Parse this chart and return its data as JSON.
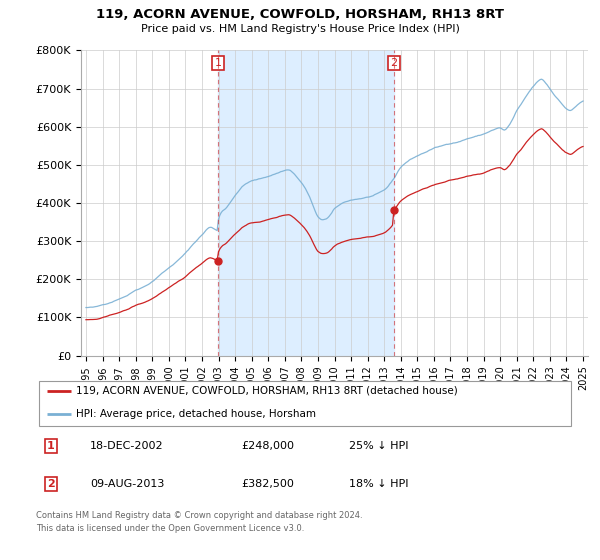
{
  "title": "119, ACORN AVENUE, COWFOLD, HORSHAM, RH13 8RT",
  "subtitle": "Price paid vs. HM Land Registry's House Price Index (HPI)",
  "legend_line1": "119, ACORN AVENUE, COWFOLD, HORSHAM, RH13 8RT (detached house)",
  "legend_line2": "HPI: Average price, detached house, Horsham",
  "footnote1": "Contains HM Land Registry data © Crown copyright and database right 2024.",
  "footnote2": "This data is licensed under the Open Government Licence v3.0.",
  "sale1_date": "18-DEC-2002",
  "sale1_price_str": "£248,000",
  "sale1_label": "25% ↓ HPI",
  "sale2_date": "09-AUG-2013",
  "sale2_price_str": "£382,500",
  "sale2_label": "18% ↓ HPI",
  "red_color": "#cc2222",
  "blue_color": "#7ab0d4",
  "blue_fill_color": "#ddeeff",
  "background_color": "#ffffff",
  "grid_color": "#cccccc",
  "sale1_x": 2002.96,
  "sale1_y": 248000,
  "sale2_x": 2013.58,
  "sale2_y": 382500,
  "ylim": [
    0,
    800000
  ],
  "yticks": [
    0,
    100000,
    200000,
    300000,
    400000,
    500000,
    600000,
    700000,
    800000
  ],
  "ytick_labels": [
    "£0",
    "£100K",
    "£200K",
    "£300K",
    "£400K",
    "£500K",
    "£600K",
    "£700K",
    "£800K"
  ],
  "xlim": [
    1994.7,
    2025.3
  ],
  "xtick_years": [
    1995,
    1996,
    1997,
    1998,
    1999,
    2000,
    2001,
    2002,
    2003,
    2004,
    2005,
    2006,
    2007,
    2008,
    2009,
    2010,
    2011,
    2012,
    2013,
    2014,
    2015,
    2016,
    2017,
    2018,
    2019,
    2020,
    2021,
    2022,
    2023,
    2024,
    2025
  ],
  "hpi_refs_x": [
    1995.0,
    1995.5,
    1996.0,
    1996.5,
    1997.0,
    1997.5,
    1998.0,
    1998.5,
    1999.0,
    1999.5,
    2000.0,
    2000.5,
    2001.0,
    2001.5,
    2002.0,
    2002.5,
    2002.96,
    2003.0,
    2003.5,
    2004.0,
    2004.5,
    2005.0,
    2005.5,
    2006.0,
    2006.5,
    2007.0,
    2007.25,
    2007.5,
    2007.75,
    2008.0,
    2008.25,
    2008.5,
    2008.75,
    2009.0,
    2009.25,
    2009.5,
    2009.75,
    2010.0,
    2010.5,
    2011.0,
    2011.5,
    2012.0,
    2012.5,
    2013.0,
    2013.58,
    2014.0,
    2014.5,
    2015.0,
    2015.5,
    2016.0,
    2016.5,
    2017.0,
    2017.5,
    2018.0,
    2018.5,
    2019.0,
    2019.5,
    2020.0,
    2020.25,
    2020.5,
    2020.75,
    2021.0,
    2021.25,
    2021.5,
    2021.75,
    2022.0,
    2022.25,
    2022.5,
    2022.75,
    2023.0,
    2023.25,
    2023.5,
    2023.75,
    2024.0,
    2024.25,
    2024.5,
    2024.75,
    2025.0
  ],
  "hpi_refs_y": [
    124000,
    124500,
    130000,
    138000,
    148000,
    158000,
    172000,
    182000,
    196000,
    215000,
    232000,
    250000,
    270000,
    295000,
    318000,
    338000,
    330000,
    360000,
    392000,
    422000,
    448000,
    460000,
    465000,
    472000,
    480000,
    488000,
    490000,
    482000,
    470000,
    456000,
    440000,
    418000,
    390000,
    365000,
    358000,
    360000,
    370000,
    385000,
    400000,
    408000,
    412000,
    416000,
    422000,
    432000,
    462000,
    492000,
    510000,
    522000,
    532000,
    542000,
    548000,
    555000,
    560000,
    568000,
    574000,
    580000,
    590000,
    596000,
    590000,
    600000,
    618000,
    640000,
    655000,
    672000,
    688000,
    702000,
    714000,
    720000,
    710000,
    695000,
    680000,
    668000,
    655000,
    645000,
    640000,
    648000,
    658000,
    665000
  ],
  "noise_seed": 42,
  "noise_hpi_scale": 8000,
  "noise_red_scale": 6000
}
